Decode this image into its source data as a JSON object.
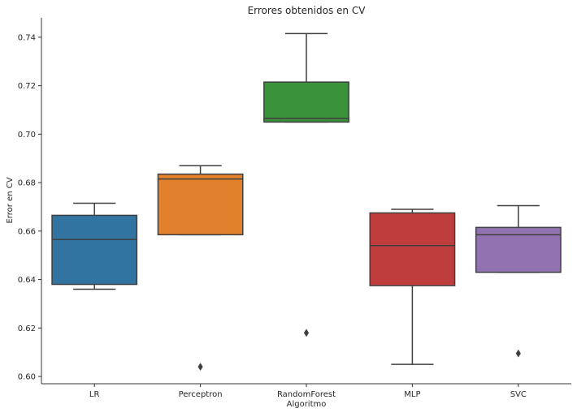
{
  "chart_data": {
    "type": "box",
    "title": "Errores obtenidos en CV",
    "xlabel": "Algoritmo",
    "ylabel": "Error en CV",
    "ylim": [
      0.597,
      0.748
    ],
    "yticks": [
      0.6,
      0.62,
      0.64,
      0.66,
      0.68,
      0.7,
      0.72,
      0.74
    ],
    "ytick_labels": [
      "0.60",
      "0.62",
      "0.64",
      "0.66",
      "0.68",
      "0.70",
      "0.72",
      "0.74"
    ],
    "grid": false,
    "categories": [
      "LR",
      "Perceptron",
      "RandomForest",
      "MLP",
      "SVC"
    ],
    "boxes": [
      {
        "category": "LR",
        "whisker_low": 0.636,
        "q1": 0.638,
        "median": 0.6565,
        "q3": 0.6665,
        "whisker_high": 0.6715,
        "outliers": [],
        "color": "#3274a1"
      },
      {
        "category": "Perceptron",
        "whisker_low": 0.6585,
        "q1": 0.6585,
        "median": 0.6815,
        "q3": 0.6835,
        "whisker_high": 0.687,
        "outliers": [
          0.604
        ],
        "color": "#e1812c"
      },
      {
        "category": "RandomForest",
        "whisker_low": 0.705,
        "q1": 0.705,
        "median": 0.7065,
        "q3": 0.7215,
        "whisker_high": 0.7415,
        "outliers": [
          0.618
        ],
        "color": "#3a923a"
      },
      {
        "category": "MLP",
        "whisker_low": 0.605,
        "q1": 0.6375,
        "median": 0.654,
        "q3": 0.6675,
        "whisker_high": 0.669,
        "outliers": [],
        "color": "#c03d3e"
      },
      {
        "category": "SVC",
        "whisker_low": 0.643,
        "q1": 0.643,
        "median": 0.6585,
        "q3": 0.6615,
        "whisker_high": 0.6705,
        "outliers": [
          0.6095
        ],
        "color": "#9372b2"
      }
    ]
  }
}
